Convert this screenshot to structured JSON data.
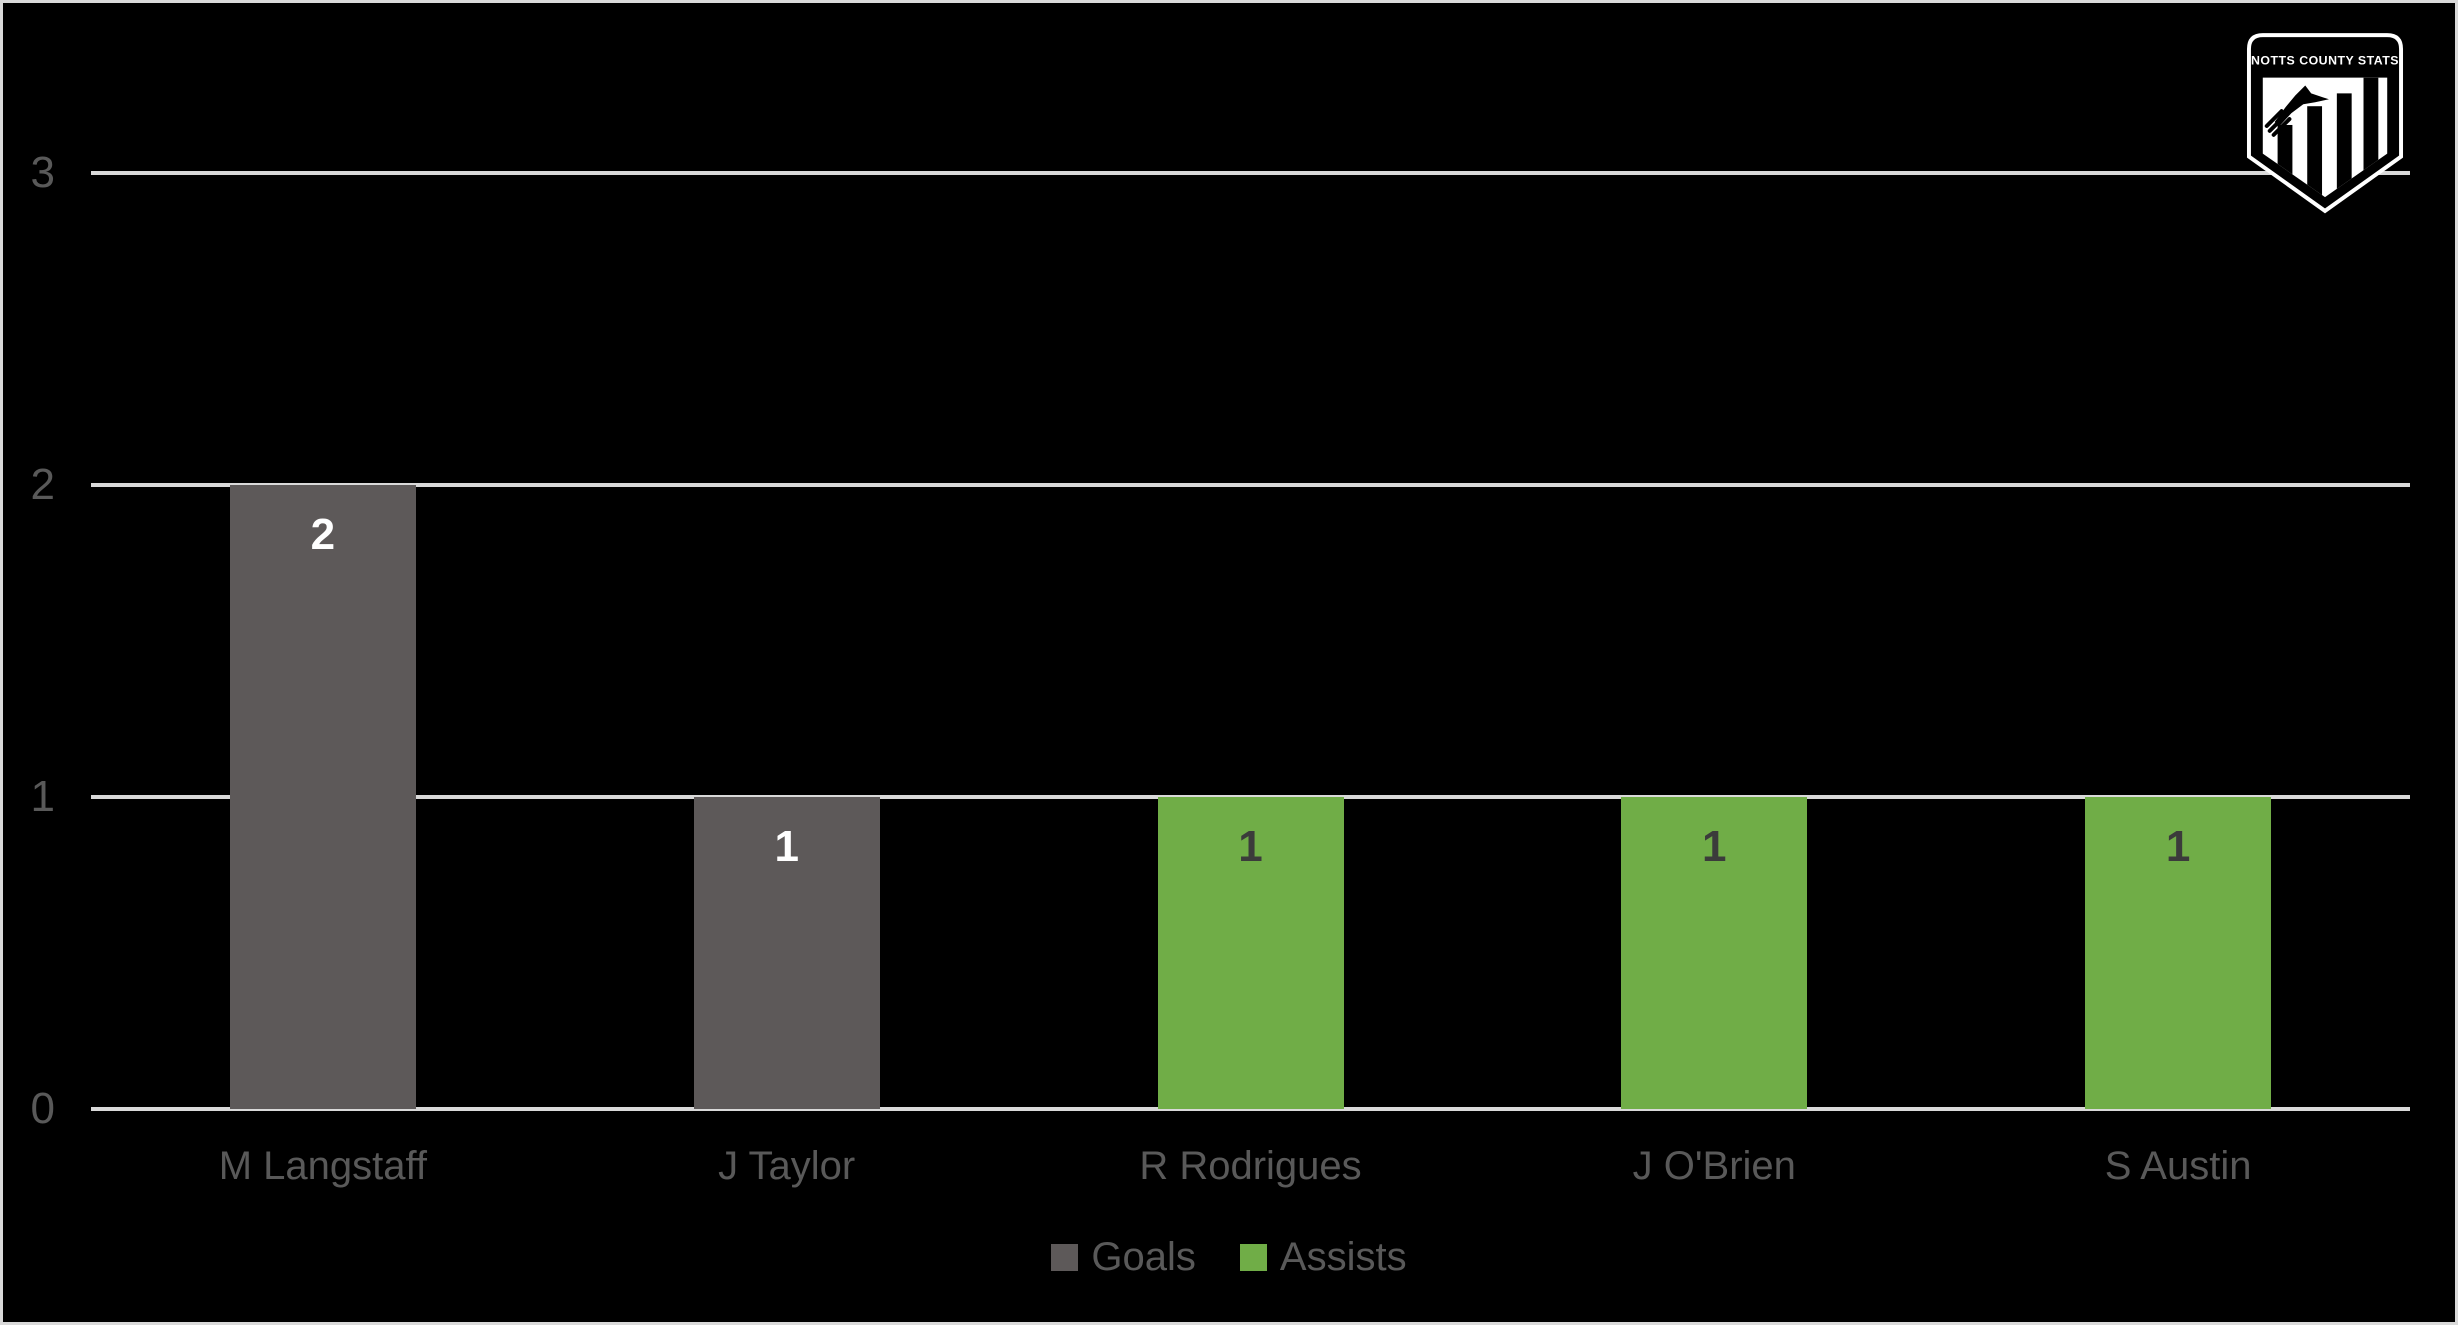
{
  "logo": {
    "text": "NOTTS COUNTY STATS"
  },
  "chart_data": {
    "type": "bar",
    "categories": [
      "M Langstaff",
      "J Taylor",
      "R Rodrigues",
      "J O'Brien",
      "S Austin"
    ],
    "series": [
      {
        "name": "Goals",
        "color": "#5d5959",
        "label_color": "#ffffff",
        "values": [
          2,
          1,
          0,
          0,
          0
        ]
      },
      {
        "name": "Assists",
        "color": "#70ad47",
        "label_color": "#3b3b3b",
        "values": [
          0,
          0,
          1,
          1,
          1
        ]
      }
    ],
    "title": "",
    "xlabel": "",
    "ylabel": "",
    "ylim": [
      0,
      3
    ],
    "yticks": [
      0,
      1,
      2,
      3
    ],
    "grid": true,
    "legend_position": "bottom",
    "data_labels": true,
    "background_color": "#000000",
    "grid_color": "#d9d9d9",
    "tick_label_color": "#595959",
    "legend_text_color": "#595959"
  }
}
